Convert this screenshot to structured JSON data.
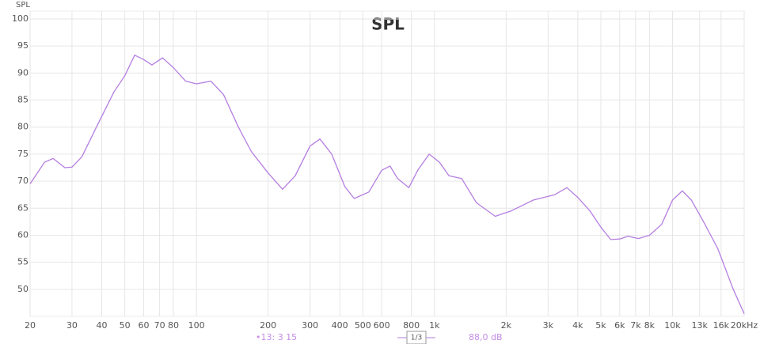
{
  "chart_data": {
    "type": "line",
    "title": "SPL",
    "y_label": "SPL",
    "log_x": true,
    "grid": true,
    "xlim": [
      20,
      20000
    ],
    "ylim": [
      45,
      100
    ],
    "yticks": [
      50,
      55,
      60,
      65,
      70,
      75,
      80,
      85,
      90,
      95,
      100
    ],
    "xticks": [
      20,
      30,
      40,
      50,
      60,
      70,
      80,
      100,
      200,
      300,
      400,
      500,
      600,
      800,
      {
        "value": 1000,
        "label": "1k"
      },
      {
        "value": 2000,
        "label": "2k"
      },
      {
        "value": 3000,
        "label": "3k"
      },
      {
        "value": 4000,
        "label": "4k"
      },
      {
        "value": 5000,
        "label": "5k"
      },
      {
        "value": 6000,
        "label": "6k"
      },
      {
        "value": 7000,
        "label": "7k"
      },
      {
        "value": 8000,
        "label": "8k"
      },
      {
        "value": 10000,
        "label": "10k"
      },
      {
        "value": 13000,
        "label": "13k"
      },
      {
        "value": 16000,
        "label": "16k"
      },
      {
        "value": 20000,
        "label": "20kHz"
      }
    ],
    "series": [
      {
        "name": "SPL",
        "color": "#b57ee0",
        "x": [
          20,
          23,
          25,
          28,
          30,
          33,
          38,
          45,
          50,
          55,
          60,
          65,
          72,
          80,
          90,
          100,
          115,
          130,
          150,
          170,
          200,
          230,
          260,
          300,
          330,
          370,
          420,
          460,
          530,
          600,
          650,
          700,
          780,
          850,
          950,
          1050,
          1150,
          1300,
          1500,
          1800,
          2100,
          2600,
          3200,
          3600,
          4000,
          4500,
          5000,
          5500,
          6000,
          6500,
          7200,
          8000,
          9000,
          10000,
          11000,
          12000,
          13500,
          15500,
          18000,
          20000
        ],
        "values": [
          69.5,
          73.5,
          74.2,
          72.5,
          72.6,
          74.5,
          80,
          86.5,
          89.5,
          93.3,
          92.5,
          91.5,
          92.8,
          91,
          88.5,
          88,
          88.5,
          86,
          80,
          75.5,
          71.5,
          68.5,
          71,
          76.5,
          77.8,
          75,
          69,
          66.8,
          68,
          72,
          72.8,
          70.5,
          68.8,
          72,
          75,
          73.5,
          71,
          70.5,
          66,
          63.5,
          64.5,
          66.5,
          67.5,
          68.8,
          67,
          64.5,
          61.5,
          59.2,
          59.3,
          59.8,
          59.4,
          60,
          62,
          66.5,
          68.2,
          66.5,
          62.5,
          57.5,
          50,
          45.5
        ]
      }
    ]
  },
  "controls": {
    "smoothing": "•13: 3 15",
    "octave": "1/3",
    "level": "88,0 dB"
  }
}
